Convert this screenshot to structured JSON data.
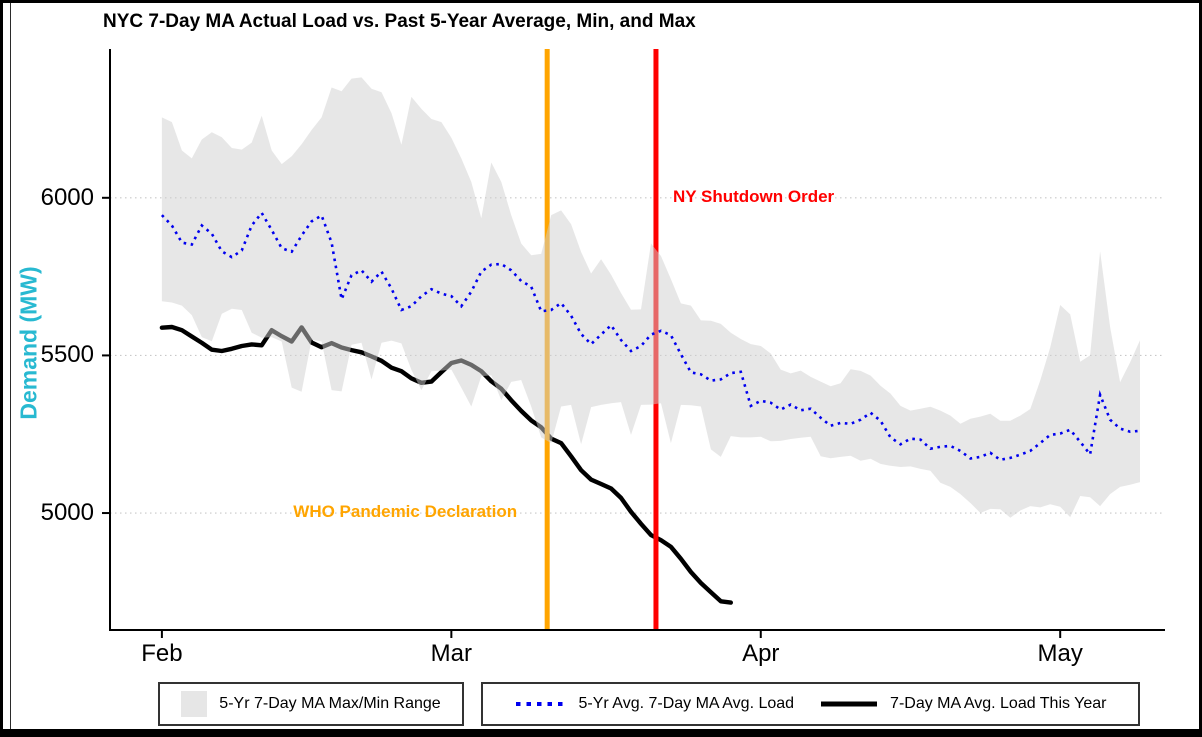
{
  "title": "NYC 7-Day MA Actual Load vs. Past 5-Year Average, Min, and Max",
  "y_axis": {
    "label": "Demand (MW)",
    "label_color": "#28b9d1",
    "ticks": [
      6000,
      5500,
      5000
    ]
  },
  "x_axis": {
    "tick_labels": [
      "Feb",
      "Mar",
      "Apr",
      "May"
    ],
    "tick_days": [
      0,
      29,
      60,
      90
    ]
  },
  "annotations": [
    {
      "id": "who",
      "text": "WHO Pandemic Declaration",
      "color": "#FFA500",
      "day": 38.6,
      "mw": 5000,
      "align": "right",
      "dx": -24
    },
    {
      "id": "ny",
      "text": "NY Shutdown Order",
      "color": "#FF0000",
      "day": 49.5,
      "mw": 6000,
      "align": "left",
      "dx": 17
    }
  ],
  "legend": {
    "items": [
      {
        "label": "5-Yr 7-Day MA Max/Min Range",
        "type": "band",
        "color": "#e6e6e6"
      },
      {
        "label": "5-Yr Avg. 7-Day MA Avg. Load",
        "type": "dotted",
        "color": "#0000EE"
      },
      {
        "label": "7-Day MA Avg. Load This Year",
        "type": "solid",
        "color": "#000000"
      }
    ]
  },
  "chart_data": {
    "type": "line",
    "title": "NYC 7-Day MA Actual Load vs. Past 5-Year Average, Min, and Max",
    "xlabel": "",
    "ylabel": "Demand (MW)",
    "x_unit": "days since Feb 1, 2020",
    "xlim_days": [
      -5.2,
      100.5
    ],
    "ylim": [
      4629,
      6472
    ],
    "grid": "horizontal-dotted",
    "grid_color": "#c8c8c8",
    "grid_values": [
      6000,
      5500,
      5000
    ],
    "legend_position": "bottom",
    "vlines": [
      {
        "day": 38.6,
        "date": "Mar 11",
        "color": "#FFA500",
        "label": "WHO Pandemic Declaration"
      },
      {
        "day": 49.5,
        "date": "Mar 22",
        "color": "#FF0000",
        "label": "NY Shutdown Order"
      }
    ],
    "series": [
      {
        "name": "5-Yr 7-Day MA Max/Min Range",
        "type": "band",
        "fill": "#cfcfcf",
        "fill_opacity": 0.5,
        "start_day": 0,
        "upper": [
          6255,
          6240,
          6150,
          6125,
          6185,
          6208,
          6192,
          6158,
          6153,
          6175,
          6260,
          6150,
          6107,
          6132,
          6170,
          6215,
          6255,
          6350,
          6338,
          6378,
          6382,
          6346,
          6335,
          6268,
          6168,
          6320,
          6282,
          6250,
          6240,
          6190,
          6125,
          6050,
          5935,
          6112,
          6050,
          5945,
          5855,
          5818,
          5822,
          5945,
          5960,
          5916,
          5828,
          5760,
          5805,
          5756,
          5698,
          5645,
          5646,
          5855,
          5815,
          5742,
          5665,
          5658,
          5611,
          5610,
          5600,
          5572,
          5552,
          5536,
          5530,
          5506,
          5455,
          5443,
          5452,
          5432,
          5417,
          5402,
          5412,
          5456,
          5451,
          5436,
          5404,
          5379,
          5340,
          5325,
          5331,
          5337,
          5325,
          5309,
          5283,
          5299,
          5306,
          5315,
          5293,
          5293,
          5309,
          5330,
          5420,
          5525,
          5660,
          5630,
          5480,
          5500,
          5830,
          5590,
          5415,
          5478,
          5548
        ],
        "lower": [
          5672,
          5668,
          5658,
          5628,
          5558,
          5545,
          5632,
          5648,
          5644,
          5572,
          5556,
          5558,
          5544,
          5398,
          5385,
          5550,
          5544,
          5390,
          5386,
          5534,
          5540,
          5424,
          5540,
          5547,
          5538,
          5454,
          5390,
          5450,
          5452,
          5455,
          5398,
          5338,
          5434,
          5437,
          5358,
          5416,
          5422,
          5338,
          5240,
          5222,
          5338,
          5343,
          5218,
          5336,
          5343,
          5348,
          5352,
          5248,
          5343,
          5344,
          5348,
          5222,
          5343,
          5342,
          5338,
          5202,
          5178,
          5244,
          5240,
          5240,
          5242,
          5228,
          5229,
          5235,
          5239,
          5242,
          5180,
          5174,
          5178,
          5182,
          5166,
          5172,
          5156,
          5150,
          5146,
          5148,
          5140,
          5134,
          5096,
          5083,
          5060,
          5032,
          5000,
          5013,
          5012,
          4985,
          5008,
          5022,
          5018,
          5028,
          5020,
          4987,
          5054,
          5050,
          5022,
          5060,
          5083,
          5090,
          5098
        ]
      },
      {
        "name": "5-Yr Avg. 7-Day MA Avg. Load",
        "type": "dotted-line",
        "color": "#0000EE",
        "start_day": 0,
        "values": [
          5945,
          5912,
          5858,
          5852,
          5912,
          5886,
          5830,
          5812,
          5833,
          5912,
          5952,
          5898,
          5840,
          5829,
          5880,
          5925,
          5944,
          5858,
          5678,
          5754,
          5770,
          5734,
          5766,
          5712,
          5644,
          5656,
          5688,
          5710,
          5696,
          5688,
          5656,
          5702,
          5766,
          5788,
          5790,
          5770,
          5736,
          5718,
          5640,
          5644,
          5666,
          5626,
          5568,
          5536,
          5566,
          5596,
          5549,
          5514,
          5530,
          5566,
          5578,
          5564,
          5504,
          5446,
          5440,
          5420,
          5424,
          5444,
          5448,
          5340,
          5356,
          5350,
          5328,
          5344,
          5326,
          5331,
          5302,
          5277,
          5286,
          5283,
          5296,
          5318,
          5293,
          5240,
          5218,
          5236,
          5233,
          5204,
          5210,
          5213,
          5197,
          5173,
          5178,
          5191,
          5169,
          5175,
          5185,
          5197,
          5222,
          5248,
          5252,
          5264,
          5226,
          5186,
          5375,
          5296,
          5268,
          5258,
          5261
        ]
      },
      {
        "name": "7-Day MA Avg. Load This Year",
        "type": "line",
        "color": "#000000",
        "start_day": 0,
        "values": [
          5588,
          5590,
          5580,
          5560,
          5540,
          5518,
          5514,
          5521,
          5530,
          5535,
          5532,
          5580,
          5561,
          5544,
          5589,
          5541,
          5526,
          5539,
          5525,
          5517,
          5510,
          5497,
          5483,
          5461,
          5450,
          5427,
          5413,
          5417,
          5447,
          5476,
          5484,
          5470,
          5450,
          5418,
          5394,
          5358,
          5324,
          5294,
          5272,
          5236,
          5222,
          5180,
          5136,
          5106,
          5092,
          5078,
          5048,
          5004,
          4966,
          4930,
          4914,
          4893,
          4855,
          4813,
          4778,
          4749,
          4720,
          4716
        ]
      }
    ]
  }
}
